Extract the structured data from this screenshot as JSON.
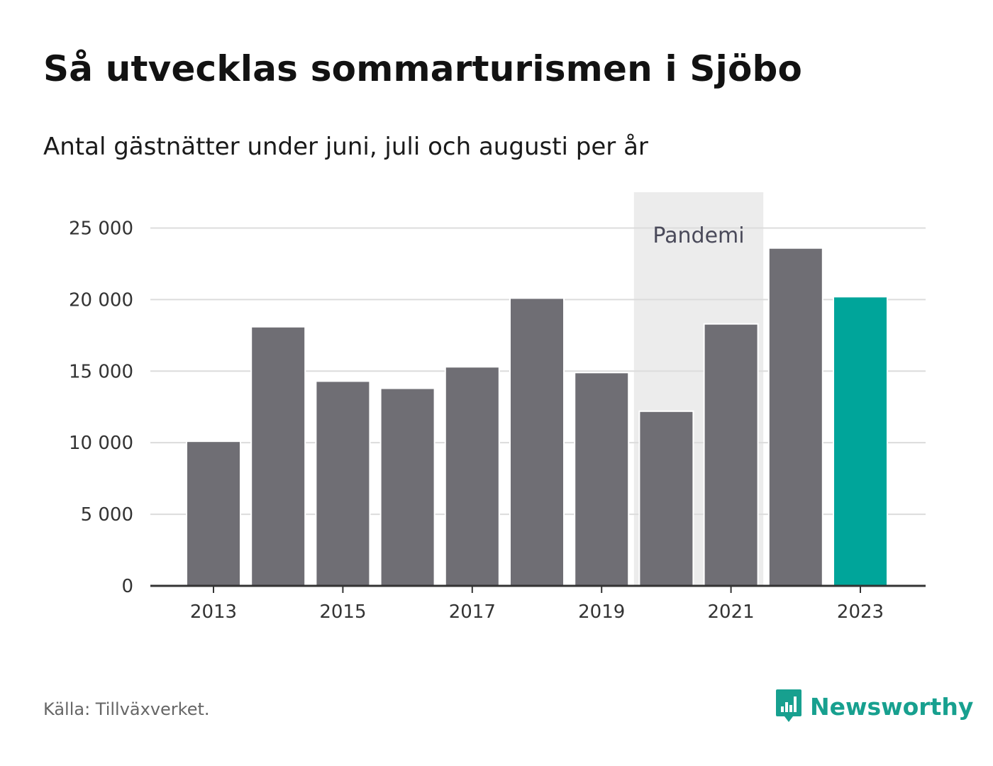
{
  "title": "Så utvecklas sommarturismen i Sjöbo",
  "subtitle": "Antal gästnätter under juni, juli och augusti per år",
  "source": "Källa: Tillväxverket.",
  "brand": {
    "name": "Newsworthy",
    "icon": "newsworthy-logo-icon",
    "color": "#17a08f"
  },
  "colors": {
    "bar": "#6f6e74",
    "highlight": "#00a59a",
    "band": "#ececec",
    "grid": "#dcdcdc",
    "axis": "#333333"
  },
  "chart_data": {
    "type": "bar",
    "categories": [
      "2013",
      "2014",
      "2015",
      "2016",
      "2017",
      "2018",
      "2019",
      "2020",
      "2021",
      "2022",
      "2023"
    ],
    "values": [
      10100,
      18100,
      14300,
      13800,
      15300,
      20100,
      14900,
      12200,
      18300,
      23600,
      20200
    ],
    "highlight_category": "2023",
    "xtick_labels": [
      "2013",
      "2015",
      "2017",
      "2019",
      "2021",
      "2023"
    ],
    "ytick_values": [
      0,
      5000,
      10000,
      15000,
      20000,
      25000
    ],
    "ytick_labels": [
      "0",
      "5 000",
      "10 000",
      "15 000",
      "20 000",
      "25 000"
    ],
    "ylim": [
      0,
      27500
    ],
    "grid": true,
    "annotation": {
      "label": "Pandemi",
      "from": "2020",
      "to": "2021"
    },
    "xlabel": "",
    "ylabel": ""
  }
}
